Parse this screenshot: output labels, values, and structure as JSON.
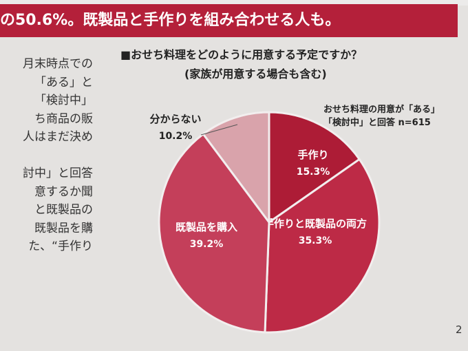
{
  "banner": {
    "text": "の50.6%。既製品と手作りを組み合わせる人も。"
  },
  "body_text": [
    "月末時点での",
    "「ある」と",
    "「検討中」",
    "ち商品の販",
    "人はまだ決め",
    "",
    "討中」と回答",
    "意するか聞",
    "と既製品の",
    "既製品を購",
    "た、“手作り"
  ],
  "chart_data": {
    "type": "pie",
    "title": "■おせち料理をどのように用意する予定ですか？",
    "subtitle": "(家族が用意する場合も含む)",
    "note": "おせち料理の用意が「ある」「検討中」と回答 n=615",
    "start": "12 o'clock, clockwise",
    "slices": [
      {
        "label": "手作り",
        "value": 15.3,
        "value_label": "15.3%",
        "color": "#ad1c36"
      },
      {
        "label": "手作りと既製品の両方",
        "value": 35.3,
        "value_label": "35.3%",
        "color": "#bd2a46"
      },
      {
        "label": "既製品を購入",
        "value": 39.2,
        "value_label": "39.2%",
        "color": "#c43f5a"
      },
      {
        "label": "分からない",
        "value": 10.2,
        "value_label": "10.2%",
        "color": "#d9a3ab"
      }
    ]
  },
  "page_number": "2"
}
